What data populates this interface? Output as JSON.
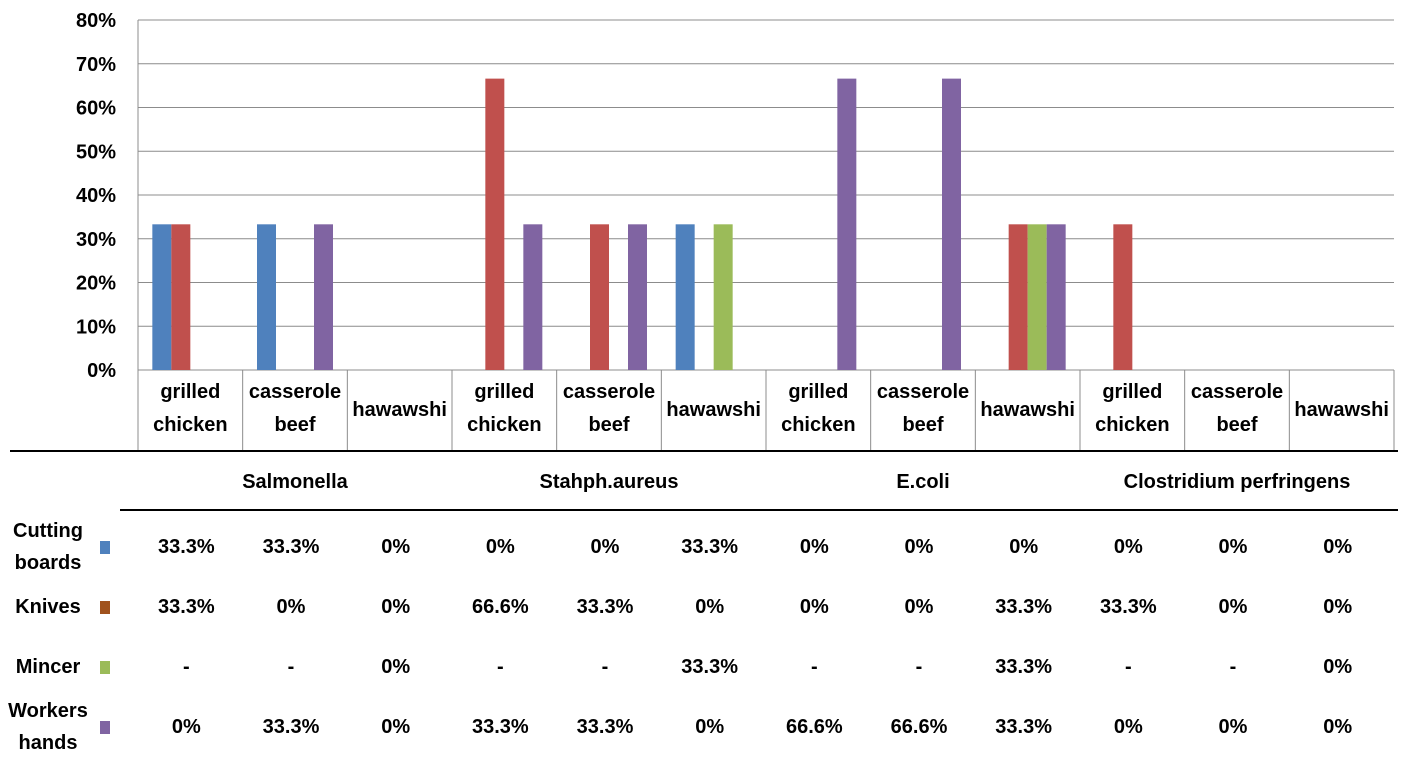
{
  "chart_data": {
    "type": "bar",
    "ylim": [
      0,
      80
    ],
    "yticks": [
      "0%",
      "10%",
      "20%",
      "30%",
      "40%",
      "50%",
      "60%",
      "70%",
      "80%"
    ],
    "grid": true,
    "groups": [
      "Salmonella",
      "Stahph.aureus",
      "E.coli",
      "Clostridium perfringens"
    ],
    "categories": [
      [
        "grilled",
        "chicken"
      ],
      [
        "casserole",
        "beef"
      ],
      [
        "hawawshi"
      ],
      [
        "grilled",
        "chicken"
      ],
      [
        "casserole",
        "beef"
      ],
      [
        "hawawshi"
      ],
      [
        "grilled",
        "chicken"
      ],
      [
        "casserole",
        "beef"
      ],
      [
        "hawawshi"
      ],
      [
        "grilled",
        "chicken"
      ],
      [
        "casserole",
        "beef"
      ],
      [
        "hawawshi"
      ]
    ],
    "series": [
      {
        "name": [
          "Cutting",
          "boards"
        ],
        "color": "#4f81bd",
        "values": [
          33.3,
          33.3,
          0,
          0,
          0,
          33.3,
          0,
          0,
          0,
          0,
          0,
          0
        ],
        "labels": [
          "33.3%",
          "33.3%",
          "0%",
          "0%",
          "0%",
          "33.3%",
          "0%",
          "0%",
          "0%",
          "0%",
          "0%",
          "0%"
        ]
      },
      {
        "name": [
          "Knives"
        ],
        "color": "#c0504d",
        "legend_color": "#a0521d",
        "values": [
          33.3,
          0,
          0,
          66.6,
          33.3,
          0,
          0,
          0,
          33.3,
          33.3,
          0,
          0
        ],
        "labels": [
          "33.3%",
          "0%",
          "0%",
          "66.6%",
          "33.3%",
          "0%",
          "0%",
          "0%",
          "33.3%",
          "33.3%",
          "0%",
          "0%"
        ]
      },
      {
        "name": [
          "Mincer"
        ],
        "color": "#9bbb59",
        "values": [
          null,
          null,
          0,
          null,
          null,
          33.3,
          null,
          null,
          33.3,
          null,
          null,
          0
        ],
        "labels": [
          "-",
          "-",
          "0%",
          "-",
          "-",
          "33.3%",
          "-",
          "-",
          "33.3%",
          "-",
          "-",
          "0%"
        ]
      },
      {
        "name": [
          "Workers",
          "hands"
        ],
        "color": "#8064a2",
        "values": [
          0,
          33.3,
          0,
          33.3,
          33.3,
          0,
          66.6,
          66.6,
          33.3,
          0,
          0,
          0
        ],
        "labels": [
          "0%",
          "33.3%",
          "0%",
          "33.3%",
          "33.3%",
          "0%",
          "66.6%",
          "66.6%",
          "33.3%",
          "0%",
          "0%",
          "0%"
        ]
      }
    ]
  }
}
